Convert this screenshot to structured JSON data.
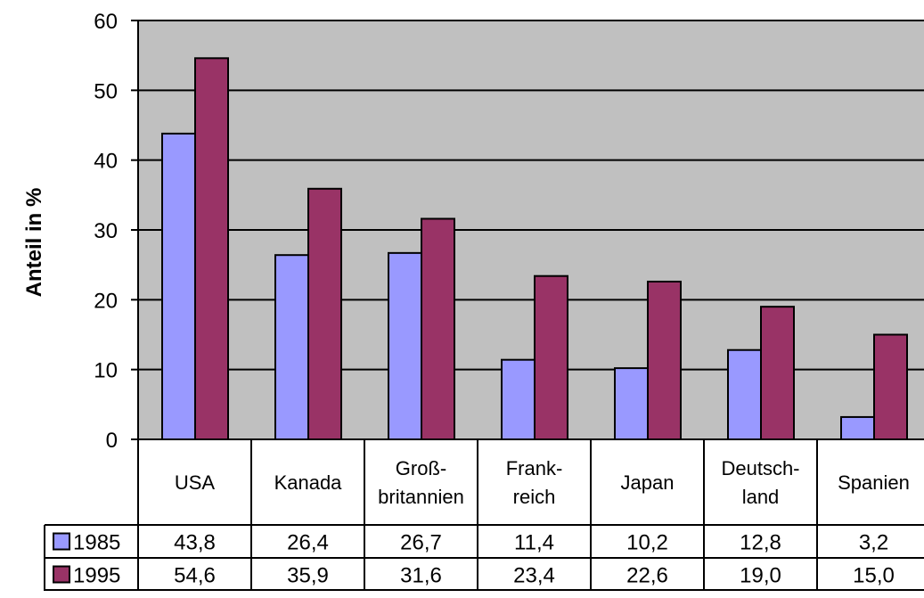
{
  "chart_data": {
    "type": "bar",
    "ylabel": "Anteil in %",
    "ylim": [
      0,
      60
    ],
    "yticks": [
      "0",
      "10",
      "20",
      "30",
      "40",
      "50",
      "60"
    ],
    "grid": true,
    "categories": [
      [
        "USA"
      ],
      [
        "Kanada"
      ],
      [
        "Groß-",
        "britannien"
      ],
      [
        "Frank-",
        "reich"
      ],
      [
        "Japan"
      ],
      [
        "Deutsch-",
        "land"
      ],
      [
        "Spanien"
      ]
    ],
    "series": [
      {
        "name": "1985",
        "color": "#9999ff",
        "values": [
          43.8,
          26.4,
          26.7,
          11.4,
          10.2,
          12.8,
          3.2
        ],
        "labels": [
          "43,8",
          "26,4",
          "26,7",
          "11,4",
          "10,2",
          "12,8",
          "3,2"
        ]
      },
      {
        "name": "1995",
        "color": "#993366",
        "values": [
          54.6,
          35.9,
          31.6,
          23.4,
          22.6,
          19.0,
          15.0
        ],
        "labels": [
          "54,6",
          "35,9",
          "31,6",
          "23,4",
          "22,6",
          "19,0",
          "15,0"
        ]
      }
    ],
    "plot_background": "#c0c0c0",
    "legend": "data-table"
  }
}
